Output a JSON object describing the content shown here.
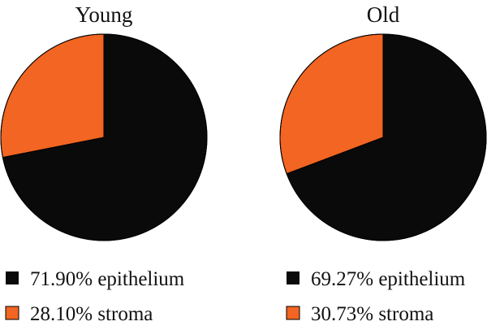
{
  "chart_data": [
    {
      "type": "pie",
      "title": "Young",
      "slices": [
        {
          "label": "epithelium",
          "value": 71.9,
          "value_label": "71.90%",
          "color": "#0a0a0a"
        },
        {
          "label": "stroma",
          "value": 28.1,
          "value_label": "28.10%",
          "color": "#f26522"
        }
      ],
      "legend": {
        "position": "bottom",
        "entries": [
          "71.90% epithelium",
          "28.10% stroma"
        ]
      }
    },
    {
      "type": "pie",
      "title": "Old",
      "slices": [
        {
          "label": "epithelium",
          "value": 69.27,
          "value_label": "69.27%",
          "color": "#0a0a0a"
        },
        {
          "label": "stroma",
          "value": 30.73,
          "value_label": "30.73%",
          "color": "#f26522"
        }
      ],
      "legend": {
        "position": "bottom",
        "entries": [
          "69.27% epithelium",
          "30.73% stroma"
        ]
      }
    }
  ]
}
